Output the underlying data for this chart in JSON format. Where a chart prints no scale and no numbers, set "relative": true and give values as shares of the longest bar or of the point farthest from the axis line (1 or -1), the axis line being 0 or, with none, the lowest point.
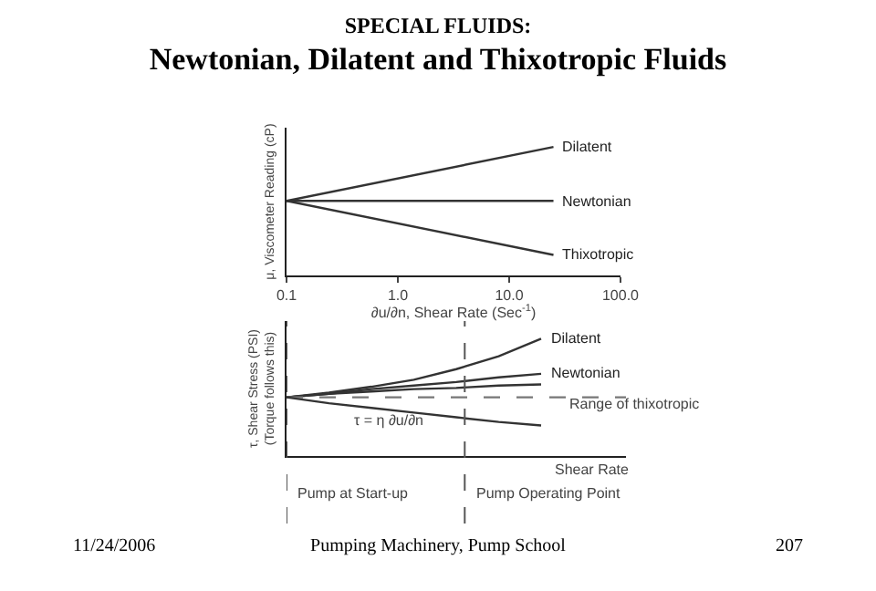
{
  "chart_data": [
    {
      "type": "line",
      "subtitle": "SPECIAL FLUIDS:",
      "title": "Newtonian, Dilatent and Thixotropic Fluids",
      "xlabel": "∂u/∂n, Shear Rate (Sec$^{-1}$)",
      "ylabel": "μ, Viscometer Reading (cP)",
      "relative": true,
      "log": "x",
      "x": [
        0.1,
        25
      ],
      "xlim": [
        0.1,
        100
      ],
      "xticks": [
        0.1,
        {
          "value": 1,
          "label": "1.0"
        },
        {
          "value": 10,
          "label": "10.0"
        },
        {
          "value": 100,
          "label": "100.0"
        }
      ],
      "grid": false,
      "legend": false,
      "tick_labels": "x",
      "series": [
        {
          "name": "Dilatent",
          "color": "#333333",
          "values": [
            0.58,
            1
          ]
        },
        {
          "name": "Newtonian",
          "color": "#333333",
          "values": [
            0.58,
            0.58
          ]
        },
        {
          "name": "Thixotropic",
          "color": "#333333",
          "values": [
            0.58,
            0.16
          ]
        }
      ]
    },
    {
      "type": "line",
      "xlabel": "Shear Rate",
      "ylabel": "τ, Shear Stress (PSI)\n(Torque follows this)",
      "relative": true,
      "grid": false,
      "legend": false,
      "tick_labels": false,
      "categories": [
        null,
        null,
        null,
        null,
        null,
        null,
        null,
        null,
        null
      ],
      "series": [
        {
          "name": "Dilatent",
          "color": "#333333",
          "values": [
            0.5,
            0.54,
            0.59,
            0.65,
            0.74,
            0.85,
            1,
            null,
            null
          ]
        },
        {
          "name": "Newtonian",
          "color": "#333333",
          "values": [
            0.5,
            0.53,
            0.57,
            0.6,
            0.63,
            0.67,
            0.7,
            null,
            null
          ]
        },
        {
          "color": "#333333",
          "values": [
            0.5,
            0.53,
            0.55,
            0.57,
            0.58,
            0.6,
            0.61,
            null,
            null
          ]
        },
        {
          "color": "#777777",
          "line_style": "dashed",
          "values": [
            0.5,
            0.5,
            0.5,
            0.5,
            0.5,
            0.5,
            0.5,
            0.5,
            0.5
          ]
        },
        {
          "color": "#333333",
          "values": [
            0.5,
            0.45,
            0.41,
            0.37,
            0.33,
            0.29,
            0.26,
            null,
            null
          ]
        }
      ],
      "annotations": [
        "τ = η ∂u/∂n",
        "Range of thixotropic",
        "Pump at Start-up",
        "Pump Operating Point",
        "11/24/2006",
        "Pumping Machinery, Pump School",
        "207"
      ]
    }
  ]
}
